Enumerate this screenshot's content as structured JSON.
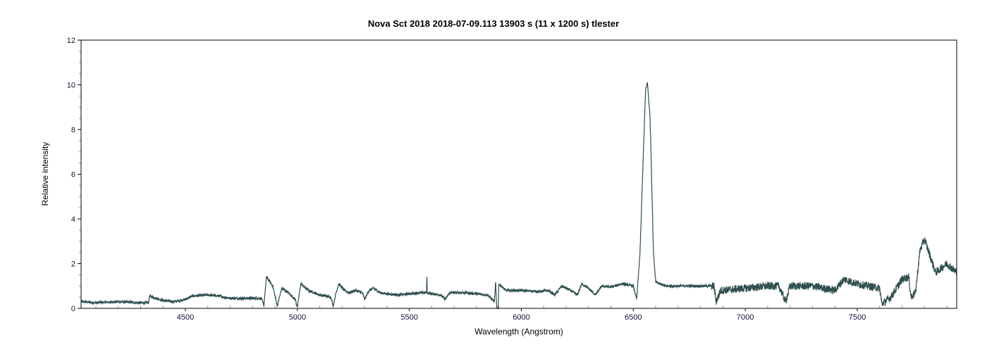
{
  "chart_data": {
    "type": "line",
    "title": "Nova Sct 2018   2018-07-09.113   13903 s (11 x 1200 s)   tlester",
    "xlabel": "Wavelength (Angstrom)",
    "ylabel": "Relative intensity",
    "xlim": [
      4034,
      7944
    ],
    "ylim": [
      0,
      12
    ],
    "xticks": [
      4500,
      5000,
      5500,
      6000,
      6500,
      7000,
      7500
    ],
    "yticks": [
      0,
      2,
      4,
      6,
      8,
      10,
      12
    ],
    "grid": false,
    "line_color": "#2f4f4f",
    "series": [
      {
        "x": [
          4034,
          4100,
          4200,
          4300,
          4335,
          4340,
          4400,
          4450,
          4500,
          4530,
          4600,
          4650,
          4700,
          4800,
          4840,
          4850,
          4862,
          4890,
          4910,
          4930,
          4960,
          4990,
          5000,
          5015,
          5050,
          5100,
          5150,
          5160,
          5170,
          5185,
          5210,
          5230,
          5260,
          5290,
          5300,
          5320,
          5340,
          5370,
          5400,
          5450,
          5500,
          5550,
          5577,
          5578,
          5579,
          5600,
          5640,
          5660,
          5680,
          5750,
          5800,
          5850,
          5880,
          5885,
          5890,
          5896,
          5900,
          5930,
          6000,
          6080,
          6120,
          6150,
          6180,
          6220,
          6250,
          6270,
          6300,
          6330,
          6360,
          6400,
          6450,
          6500,
          6515,
          6530,
          6545,
          6555,
          6563,
          6575,
          6590,
          6600,
          6640,
          6700,
          6800,
          6860,
          6870,
          6890,
          7000,
          7100,
          7150,
          7180,
          7200,
          7300,
          7400,
          7440,
          7500,
          7600,
          7610,
          7650,
          7700,
          7730,
          7740,
          7760,
          7780,
          7800,
          7820,
          7850,
          7900,
          7944
        ],
        "y": [
          0.3,
          0.25,
          0.3,
          0.25,
          0.25,
          0.55,
          0.35,
          0.3,
          0.4,
          0.55,
          0.6,
          0.55,
          0.45,
          0.45,
          0.45,
          0.1,
          1.4,
          1.0,
          0.1,
          0.9,
          0.7,
          0.4,
          0.05,
          1.1,
          0.8,
          0.6,
          0.5,
          0.1,
          0.6,
          1.1,
          0.8,
          0.7,
          0.8,
          0.7,
          0.4,
          0.8,
          0.9,
          0.7,
          0.65,
          0.6,
          0.65,
          0.7,
          0.7,
          1.85,
          0.7,
          0.65,
          0.6,
          0.4,
          0.7,
          0.7,
          0.65,
          0.6,
          0.3,
          1.2,
          0.0,
          0.0,
          1.1,
          0.8,
          0.8,
          0.75,
          0.8,
          0.6,
          1.0,
          0.8,
          0.6,
          1.1,
          0.9,
          0.6,
          1.0,
          0.95,
          1.1,
          1.0,
          0.4,
          2.5,
          7.0,
          9.8,
          10.1,
          8.5,
          2.5,
          1.2,
          1.0,
          1.0,
          1.0,
          1.0,
          0.3,
          0.8,
          0.9,
          1.0,
          1.0,
          0.3,
          1.0,
          1.0,
          0.8,
          1.3,
          1.1,
          0.9,
          0.2,
          0.5,
          1.3,
          1.4,
          0.5,
          0.7,
          2.6,
          3.1,
          2.5,
          1.6,
          2.0,
          1.6
        ]
      }
    ]
  }
}
